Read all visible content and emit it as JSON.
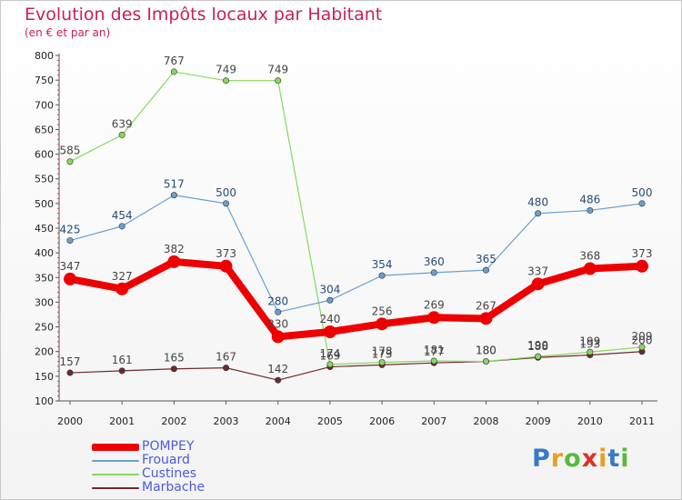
{
  "title": "Evolution des Impôts locaux par Habitant",
  "subtitle": "(en € et par an)",
  "logo": {
    "text": "Proxiti",
    "letter_colors": [
      "#3a78c8",
      "#e8a020",
      "#5cb83c",
      "#d8342c",
      "#e8a020",
      "#3a78c8",
      "#5cb83c"
    ]
  },
  "chart_data": {
    "type": "line",
    "x": [
      "2000",
      "2001",
      "2002",
      "2003",
      "2004",
      "2005",
      "2006",
      "2007",
      "2008",
      "2009",
      "2010",
      "2011"
    ],
    "ylim": [
      100,
      800
    ],
    "yticks": [
      100,
      150,
      200,
      250,
      300,
      350,
      400,
      450,
      500,
      550,
      600,
      650,
      700,
      750,
      800
    ],
    "grid": false,
    "legend_position": "bottom-left",
    "series": [
      {
        "name": "Marbache",
        "color": "#6e2a2a",
        "label_color": "#444444",
        "width": 1.2,
        "marker": 3.2,
        "values": [
          157,
          161,
          165,
          167,
          142,
          169,
          173,
          177,
          180,
          188,
          193,
          200
        ]
      },
      {
        "name": "Custines",
        "color": "#88d860",
        "label_color": "#444444",
        "width": 1.2,
        "marker": 3.2,
        "values": [
          585,
          639,
          767,
          749,
          749,
          174,
          178,
          181,
          180,
          190,
          199,
          209
        ]
      },
      {
        "name": "Frouard",
        "color": "#6aa0d0",
        "label_color": "#2a4a78",
        "width": 1.2,
        "marker": 3.2,
        "values": [
          425,
          454,
          517,
          500,
          280,
          304,
          354,
          360,
          365,
          480,
          486,
          500
        ]
      },
      {
        "name": "POMPEY",
        "color": "#ee0000",
        "label_color": "#444444",
        "width": 8,
        "marker": 7,
        "values": [
          347,
          327,
          382,
          373,
          230,
          240,
          256,
          269,
          267,
          337,
          368,
          373
        ]
      }
    ],
    "legend_order": [
      "POMPEY",
      "Frouard",
      "Custines",
      "Marbache"
    ]
  }
}
